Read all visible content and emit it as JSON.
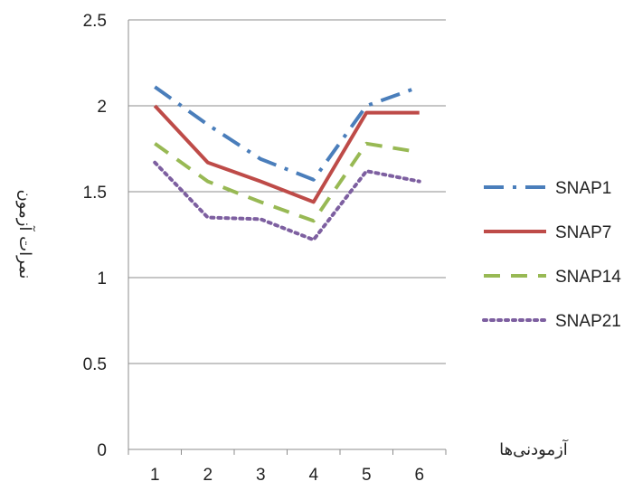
{
  "chart_data": {
    "type": "line",
    "title": "",
    "xlabel": "آزمودنی‌ها",
    "ylabel": "نمرات آزمون",
    "categories": [
      "1",
      "2",
      "3",
      "4",
      "5",
      "6"
    ],
    "ylim": [
      0,
      2.5
    ],
    "yticks": [
      "0",
      "0.5",
      "1",
      "1.5",
      "2",
      "2.5"
    ],
    "grid": true,
    "legend_position": "right",
    "series": [
      {
        "name": "SNAP1",
        "values": [
          2.11,
          1.89,
          1.69,
          1.57,
          2.0,
          2.11
        ],
        "color": "#4a7ebb",
        "dash": "dash-dot"
      },
      {
        "name": "SNAP7",
        "values": [
          2.0,
          1.67,
          1.56,
          1.44,
          1.96,
          1.96
        ],
        "color": "#be4b48",
        "dash": "solid"
      },
      {
        "name": "SNAP14",
        "values": [
          1.78,
          1.56,
          1.44,
          1.33,
          1.78,
          1.73
        ],
        "color": "#98b954",
        "dash": "dash"
      },
      {
        "name": "SNAP21",
        "values": [
          1.67,
          1.35,
          1.34,
          1.22,
          1.62,
          1.56
        ],
        "color": "#7d5fa0",
        "dash": "dot"
      }
    ]
  }
}
